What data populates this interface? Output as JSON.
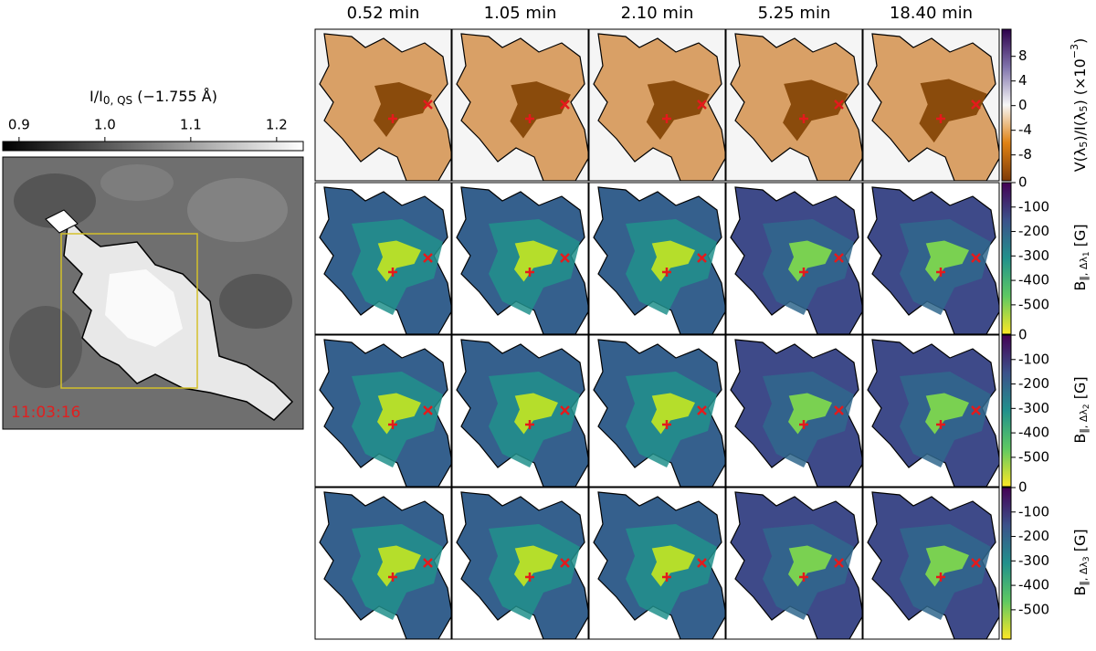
{
  "columns": [
    "0.52 min",
    "1.05 min",
    "2.10 min",
    "5.25 min",
    "18.40 min"
  ],
  "context": {
    "timestamp": "11:03:16",
    "colorbar": {
      "label": [
        "I/I",
        "0, QS",
        " (−1.755 Å)"
      ],
      "lim": [
        0.881,
        1.231
      ],
      "ticks": [
        {
          "value": 0.9,
          "label": "0.9"
        },
        {
          "value": 1.0,
          "label": "1.0"
        },
        {
          "value": 1.1,
          "label": "1.1"
        },
        {
          "value": 1.2,
          "label": "1.2"
        }
      ]
    }
  },
  "rows": [
    {
      "colorbar": {
        "label": [
          "V(λ",
          "5",
          ")/I(λ",
          "5",
          ") (×10",
          "−3",
          ")"
        ],
        "lim": [
          -12.2,
          12.4
        ],
        "ticks": [
          8,
          4,
          0,
          -4,
          -8
        ]
      }
    },
    {
      "colorbar": {
        "label": [
          "B",
          "‖, Δλ",
          "1",
          " [G]"
        ],
        "lim": [
          -620,
          0
        ],
        "ticks": [
          0,
          -100,
          -200,
          -300,
          -400,
          -500
        ]
      }
    },
    {
      "colorbar": {
        "label": [
          "B",
          "‖, Δλ",
          "2",
          " [G]"
        ],
        "lim": [
          -620,
          0
        ],
        "ticks": [
          0,
          -100,
          -200,
          -300,
          -400,
          -500
        ]
      }
    },
    {
      "colorbar": {
        "label": [
          "B",
          "‖, Δλ",
          "3",
          " [G]"
        ],
        "lim": [
          -620,
          0
        ],
        "ticks": [
          0,
          -100,
          -200,
          -300,
          -400,
          -500
        ]
      }
    }
  ]
}
